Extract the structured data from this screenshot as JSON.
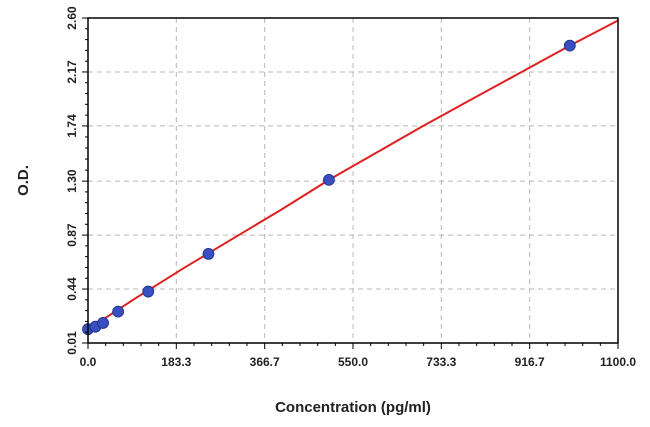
{
  "chart_data": {
    "type": "scatter",
    "title": "",
    "xlabel": "Concentration (pg/ml)",
    "ylabel": "O.D.",
    "xlim": [
      0.0,
      1100.0
    ],
    "ylim": [
      0.01,
      2.6
    ],
    "x_ticks": [
      0.0,
      183.3,
      366.7,
      550.0,
      733.3,
      916.7,
      1100.0
    ],
    "x_tick_labels": [
      "0.0",
      "183.3",
      "366.7",
      "550.0",
      "733.3",
      "916.7",
      "1100.0"
    ],
    "y_ticks": [
      0.01,
      0.44,
      0.87,
      1.3,
      1.74,
      2.17,
      2.6
    ],
    "y_tick_labels": [
      "0.01",
      "0.44",
      "0.87",
      "1.30",
      "1.74",
      "2.17",
      "2.60"
    ],
    "grid": true,
    "series": [
      {
        "kind": "points",
        "color": "#3a4fbf",
        "x": [
          0,
          15.6,
          31.3,
          62.5,
          125,
          250,
          500,
          1000
        ],
        "y": [
          0.12,
          0.14,
          0.17,
          0.26,
          0.42,
          0.72,
          1.31,
          2.38
        ]
      },
      {
        "kind": "fit-line",
        "color": "#e02020",
        "x": [
          0,
          100,
          200,
          300,
          400,
          500,
          600,
          700,
          800,
          900,
          1000,
          1100
        ],
        "y": [
          0.12,
          0.37,
          0.61,
          0.84,
          1.07,
          1.31,
          1.53,
          1.75,
          1.96,
          2.17,
          2.38,
          2.58
        ]
      }
    ]
  }
}
